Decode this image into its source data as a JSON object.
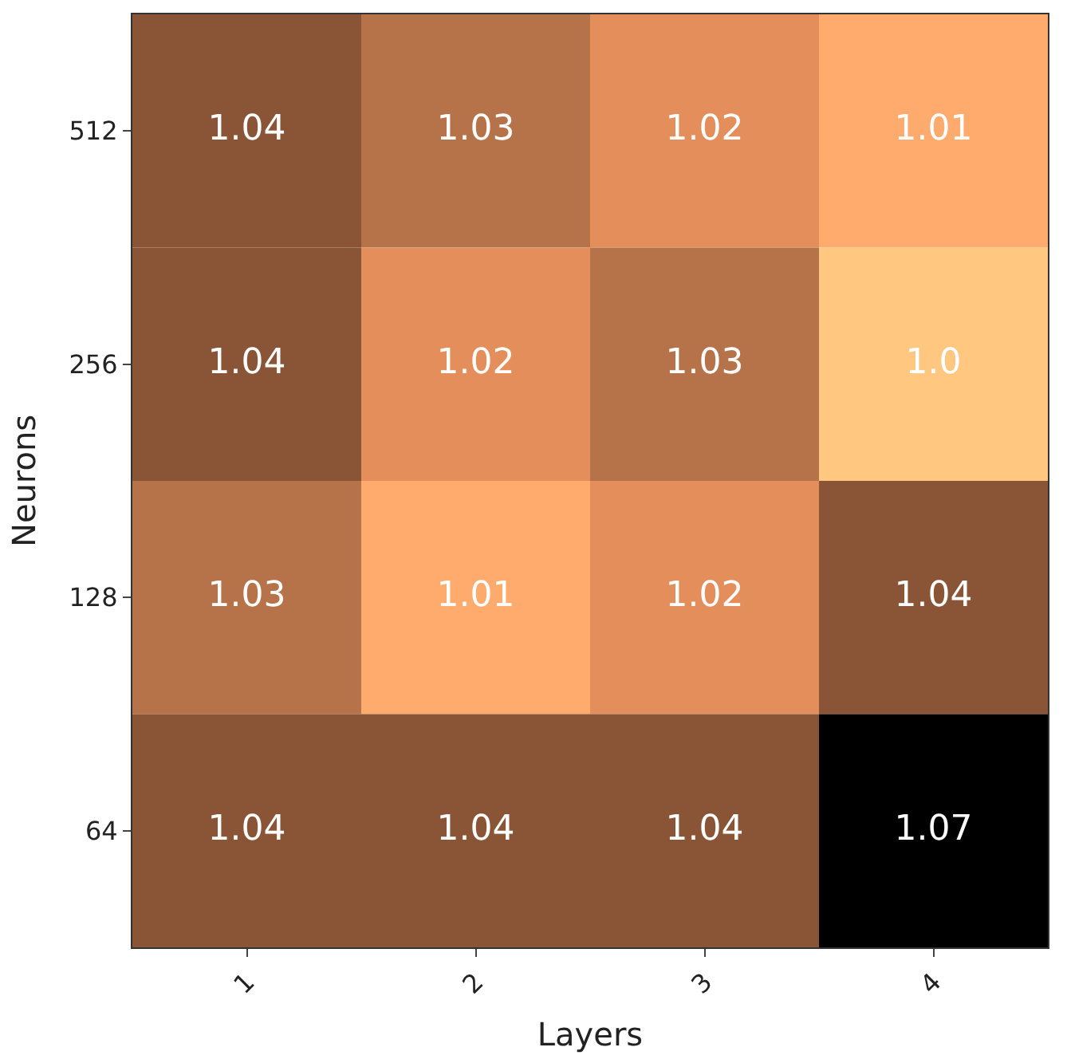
{
  "chart_data": {
    "type": "heatmap",
    "xlabel": "Layers",
    "ylabel": "Neurons",
    "categories": [
      "1",
      "2",
      "3",
      "4"
    ],
    "y_categories": [
      "512",
      "256",
      "128",
      "64"
    ],
    "cells": [
      [
        1.04,
        1.03,
        1.02,
        1.01
      ],
      [
        1.04,
        1.02,
        1.03,
        1.0
      ],
      [
        1.03,
        1.01,
        1.02,
        1.04
      ],
      [
        1.04,
        1.04,
        1.04,
        1.07
      ]
    ],
    "cell_labels": [
      [
        "1.04",
        "1.03",
        "1.02",
        "1.01"
      ],
      [
        "1.04",
        "1.02",
        "1.03",
        "1.0"
      ],
      [
        "1.03",
        "1.01",
        "1.02",
        "1.04"
      ],
      [
        "1.04",
        "1.04",
        "1.04",
        "1.07"
      ]
    ]
  }
}
